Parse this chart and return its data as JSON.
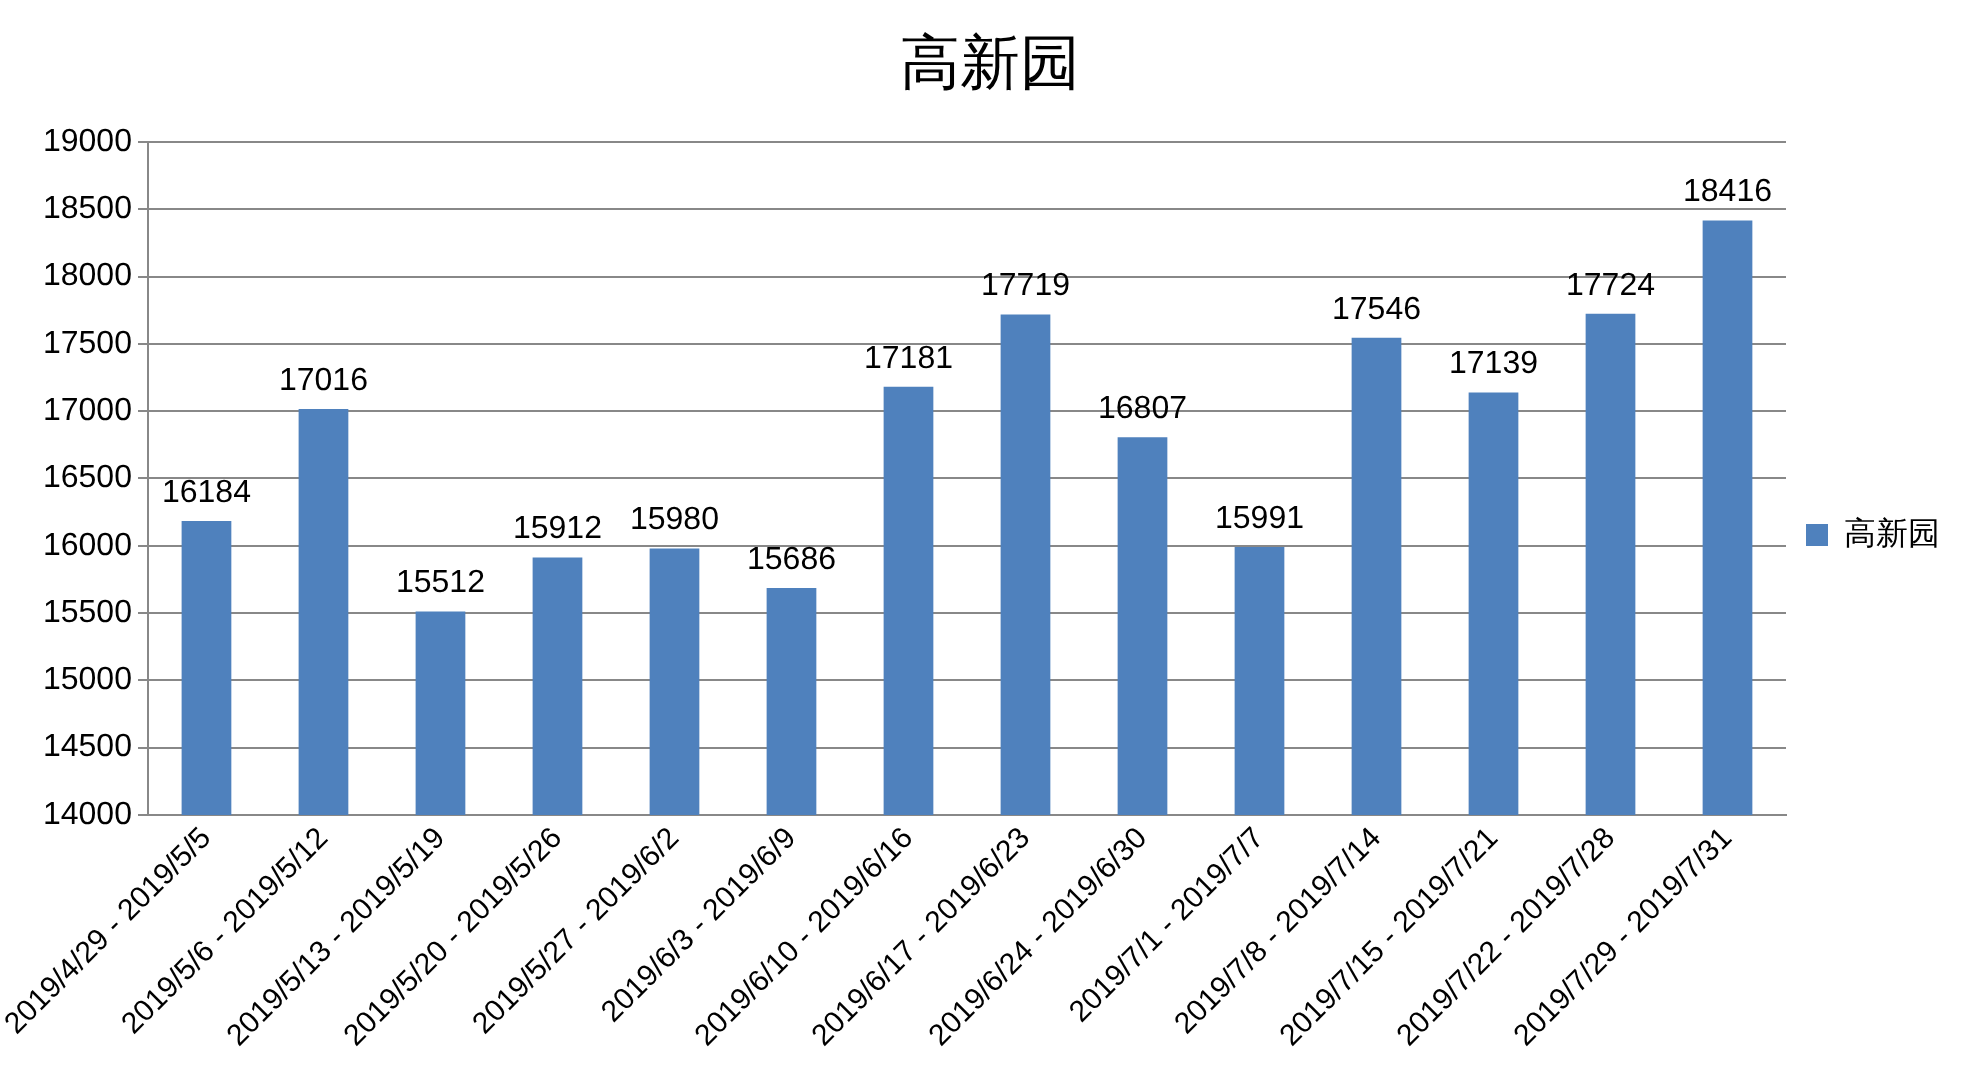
{
  "chart_data": {
    "type": "bar",
    "title": "高新园",
    "categories": [
      "2019/4/29 - 2019/5/5",
      "2019/5/6 - 2019/5/12",
      "2019/5/13 - 2019/5/19",
      "2019/5/20 - 2019/5/26",
      "2019/5/27 - 2019/6/2",
      "2019/6/3 - 2019/6/9",
      "2019/6/10 - 2019/6/16",
      "2019/6/17 - 2019/6/23",
      "2019/6/24 - 2019/6/30",
      "2019/7/1 - 2019/7/7",
      "2019/7/8 - 2019/7/14",
      "2019/7/15 - 2019/7/21",
      "2019/7/22 - 2019/7/28",
      "2019/7/29 - 2019/7/31"
    ],
    "series": [
      {
        "name": "高新园",
        "color": "#4f81bd",
        "values": [
          16184,
          17016,
          15512,
          15912,
          15980,
          15686,
          17181,
          17719,
          16807,
          15991,
          17546,
          17139,
          17724,
          18416
        ]
      }
    ],
    "ylim": [
      14000,
      19000
    ],
    "yticks": [
      14000,
      14500,
      15000,
      15500,
      16000,
      16500,
      17000,
      17500,
      18000,
      18500,
      19000
    ],
    "grid": "y",
    "legend": "right",
    "data_labels": true
  }
}
